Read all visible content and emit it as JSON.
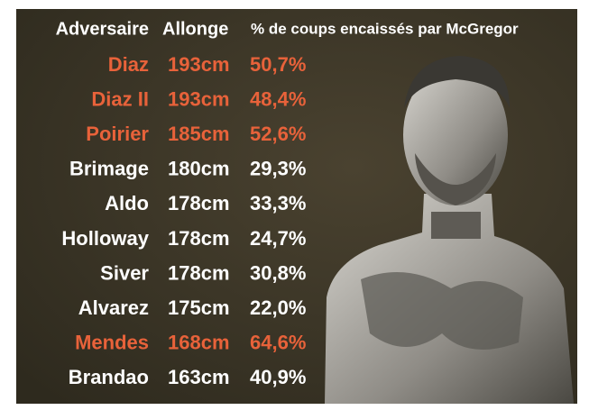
{
  "table": {
    "header": [
      "Adversaire",
      "Allonge",
      "% de coups encaissés par McGregor"
    ],
    "rows": [
      [
        "Diaz",
        "193cm",
        "50,7%"
      ],
      [
        "Diaz II",
        "193cm",
        "48,4%"
      ],
      [
        "Poirier",
        "185cm",
        "52,6%"
      ],
      [
        "Brimage",
        "180cm",
        "29,3%"
      ],
      [
        "Aldo",
        "178cm",
        "33,3%"
      ],
      [
        "Holloway",
        "178cm",
        "24,7%"
      ],
      [
        "Siver",
        "178cm",
        "30,8%"
      ],
      [
        "Alvarez",
        "175cm",
        "22,0%"
      ],
      [
        "Mendes",
        "168cm",
        "64,6%"
      ],
      [
        "Brandao",
        "163cm",
        "40,9%"
      ]
    ],
    "row_colors": [
      "#e8623a",
      "#e8623a",
      "#e8623a",
      "#ffffff",
      "#ffffff",
      "#ffffff",
      "#ffffff",
      "#ffffff",
      "#e8623a",
      "#ffffff"
    ]
  }
}
